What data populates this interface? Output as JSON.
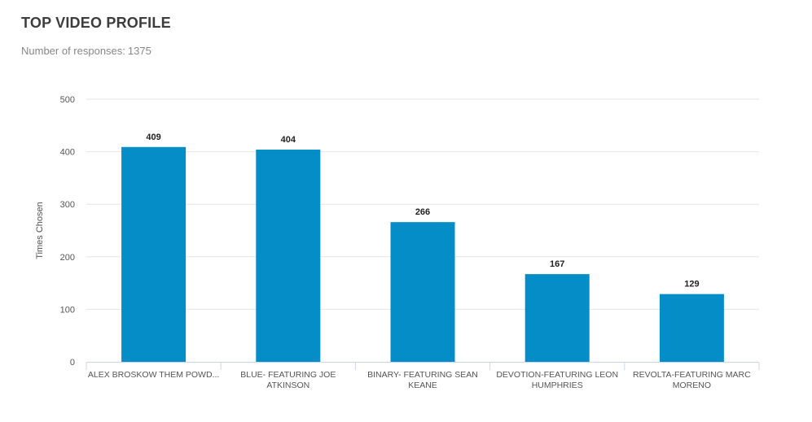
{
  "header": {
    "title": "TOP VIDEO PROFILE",
    "responses_label": "Number of responses:",
    "responses_count": "1375"
  },
  "chart_data": {
    "type": "bar",
    "ylabel": "Times Chosen",
    "xlabel": "",
    "ylim": [
      0,
      500
    ],
    "yticks": [
      0,
      100,
      200,
      300,
      400,
      500
    ],
    "grid": true,
    "bar_color": "#058dc7",
    "categories": [
      [
        "ALEX BROSKOW THEM POWD..."
      ],
      [
        "BLUE- FEATURING JOE",
        "ATKINSON"
      ],
      [
        "BINARY- FEATURING SEAN",
        "KEANE"
      ],
      [
        "DEVOTION-FEATURING LEON",
        "HUMPHRIES"
      ],
      [
        "REVOLTA-FEATURING MARC",
        "MORENO"
      ]
    ],
    "values": [
      409,
      404,
      266,
      167,
      129
    ]
  }
}
